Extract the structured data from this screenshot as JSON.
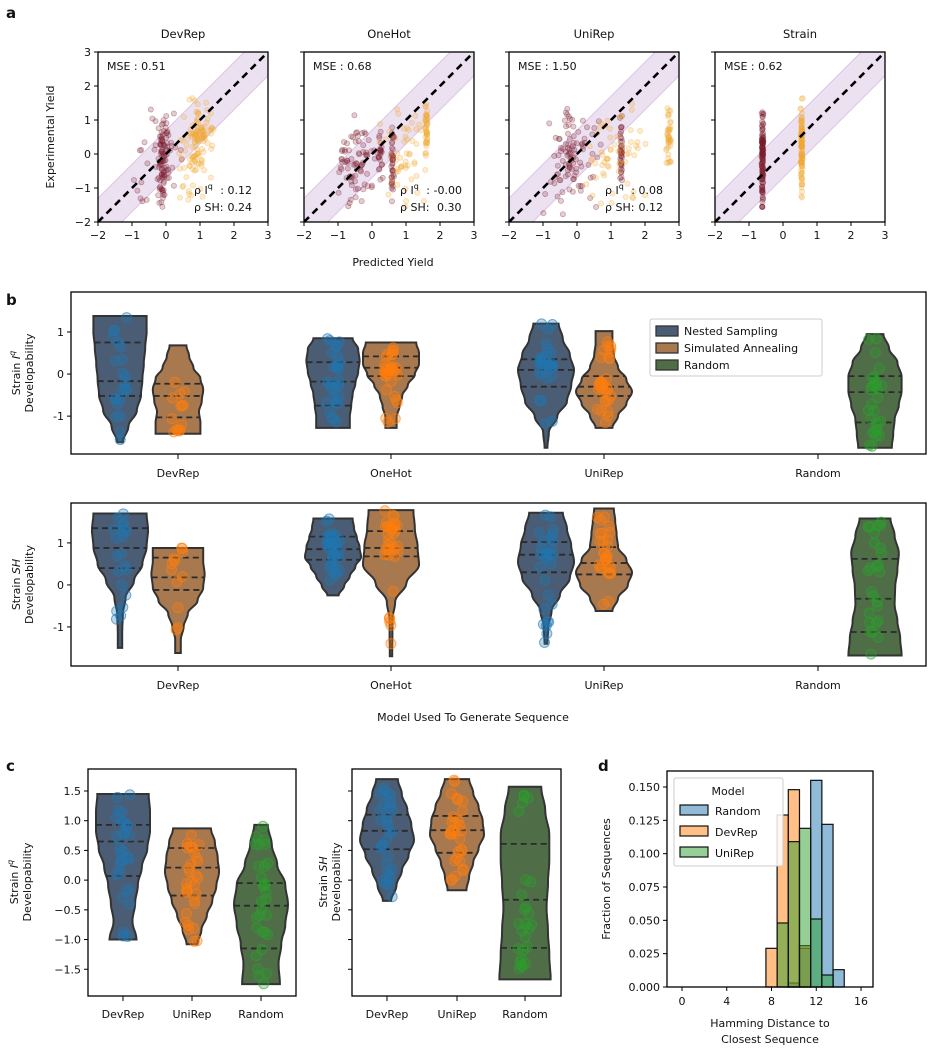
{
  "chart_data": [
    {
      "panel": "a",
      "panel_label": "a",
      "type": "scatter",
      "xlabel": "Predicted Yield",
      "ylabel": "Experimental Yield",
      "xlim": [
        -2,
        3
      ],
      "ylim": [
        -2,
        3
      ],
      "ticks": [
        -2,
        -1,
        0,
        1,
        2,
        3
      ],
      "tick_labels": [
        "−2",
        "−1",
        "0",
        "1",
        "2",
        "3"
      ],
      "identity_line": true,
      "band_halfwidth": 0.7,
      "colors": {
        "Iq": "#7b1c2c",
        "SH": "#f0a830",
        "band": "#c9a9d6"
      },
      "rho_prefix": "ρ I",
      "rho_sup": "q",
      "rho_sh_prefix": "ρ SH:",
      "subplots": [
        {
          "title": "DevRep",
          "mse": "MSE : 0.51",
          "rho_iq": " : 0.12",
          "rho_sh": "0.24",
          "point_clusters": {
            "Iq": [
              {
                "x_mean": -0.1,
                "x_sd": 0.12,
                "y": [
                  -1.7,
                  1.3
                ],
                "n": 80
              },
              {
                "x_mean": -0.3,
                "x_sd": 0.5,
                "y": [
                  -1.8,
                  1.4
                ],
                "n": 40
              }
            ],
            "SH": [
              {
                "x_mean": 0.95,
                "x_sd": 0.3,
                "y": [
                  -0.6,
                  1.8
                ],
                "n": 90
              },
              {
                "x_mean": 0.8,
                "x_sd": 0.45,
                "y": [
                  -1.7,
                  1.2
                ],
                "n": 35
              }
            ]
          }
        },
        {
          "title": "OneHot",
          "mse": "MSE : 0.68",
          "rho_iq": " : -0.00",
          "rho_sh": " 0.30",
          "point_clusters": {
            "Iq": [
              {
                "x_mean": -0.4,
                "x_sd": 0.45,
                "y": [
                  -1.7,
                  1.4
                ],
                "n": 80
              },
              {
                "x_mean": 0.6,
                "x_sd": 0.03,
                "y": [
                  -1.6,
                  0.9
                ],
                "n": 40
              },
              {
                "x_mean": 0.25,
                "x_sd": 0.05,
                "y": [
                  -0.8,
                  0.9
                ],
                "n": 20
              }
            ],
            "SH": [
              {
                "x_mean": 1.0,
                "x_sd": 0.5,
                "y": [
                  -1.6,
                  1.7
                ],
                "n": 50
              },
              {
                "x_mean": 1.6,
                "x_sd": 0.03,
                "y": [
                  -0.4,
                  1.7
                ],
                "n": 40
              }
            ]
          }
        },
        {
          "title": "UniRep",
          "mse": "MSE : 1.50",
          "rho_iq": " : 0.08",
          "rho_sh": "0.12",
          "point_clusters": {
            "Iq": [
              {
                "x_mean": -0.1,
                "x_sd": 0.5,
                "y": [
                  -1.8,
                  1.5
                ],
                "n": 100
              },
              {
                "x_mean": 1.3,
                "x_sd": 0.03,
                "y": [
                  -1.0,
                  1.2
                ],
                "n": 40
              }
            ],
            "SH": [
              {
                "x_mean": 1.2,
                "x_sd": 0.6,
                "y": [
                  -1.7,
                  1.7
                ],
                "n": 60
              },
              {
                "x_mean": 2.7,
                "x_sd": 0.05,
                "y": [
                  -0.5,
                  1.8
                ],
                "n": 40
              }
            ]
          }
        },
        {
          "title": "Strain",
          "mse": "MSE : 0.62",
          "rho_iq": null,
          "rho_sh": null,
          "point_clusters": {
            "Iq": [
              {
                "x_mean": -0.6,
                "x_sd": 0.02,
                "y": [
                  -1.8,
                  1.45
                ],
                "n": 120
              }
            ],
            "SH": [
              {
                "x_mean": 0.55,
                "x_sd": 0.02,
                "y": [
                  -1.7,
                  1.8
                ],
                "n": 100
              }
            ]
          }
        }
      ]
    },
    {
      "panel": "b",
      "panel_label": "b",
      "type": "violin",
      "xlabel": "Model Used To Generate Sequence",
      "categories": [
        "DevRep",
        "OneHot",
        "UniRep",
        "Random"
      ],
      "hues": {
        "Nested Sampling": {
          "fill": "#4a5d75",
          "point": "#1f77b4"
        },
        "Simulated Annealing": {
          "fill": "#a8784e",
          "point": "#ff7f0e"
        },
        "Random": {
          "fill": "#4f6e48",
          "point": "#2ca02c"
        }
      },
      "legend": {
        "entries": [
          "Nested Sampling",
          "Simulated Annealing",
          "Random"
        ],
        "placement": "upper-right-center"
      },
      "yticks": [
        -1,
        0,
        1
      ],
      "ytick_labels": [
        "-1",
        "0",
        "1"
      ],
      "subplots": [
        {
          "ylabel": {
            "prefix": "Strain ",
            "symbol": "I",
            "sup": "q",
            "line2": "Developability"
          },
          "ylim": [
            -1.9,
            1.95
          ],
          "violins": [
            {
              "category": "DevRep",
              "hue": "Nested Sampling",
              "min": -1.62,
              "max": 1.38,
              "q1": -0.52,
              "median": -0.17,
              "q3": 0.75,
              "n": 22,
              "shape": [
                0.1,
                0.3,
                0.6,
                0.75,
                0.8,
                0.85,
                0.9,
                0.95,
                0.95
              ]
            },
            {
              "category": "DevRep",
              "hue": "Simulated Annealing",
              "min": -1.42,
              "max": 0.68,
              "q1": -1.03,
              "median": -0.52,
              "q3": -0.23,
              "n": 14,
              "shape": [
                0.8,
                0.8,
                0.75,
                0.85,
                0.9,
                0.8,
                0.55,
                0.4,
                0.3
              ]
            },
            {
              "category": "OneHot",
              "hue": "Nested Sampling",
              "min": -1.28,
              "max": 0.85,
              "q1": -0.75,
              "median": -0.18,
              "q3": 0.28,
              "n": 28,
              "shape": [
                0.6,
                0.6,
                0.65,
                0.7,
                0.8,
                0.9,
                0.95,
                0.9,
                0.7
              ]
            },
            {
              "category": "OneHot",
              "hue": "Simulated Annealing",
              "min": -1.28,
              "max": 0.75,
              "q1": -0.05,
              "median": 0.15,
              "q3": 0.42,
              "n": 32,
              "shape": [
                0.2,
                0.2,
                0.3,
                0.4,
                0.6,
                0.85,
                1,
                1,
                0.9
              ]
            },
            {
              "category": "UniRep",
              "hue": "Nested Sampling",
              "min": -1.75,
              "max": 1.2,
              "q1": -0.3,
              "median": 0.1,
              "q3": 0.35,
              "n": 26,
              "shape": [
                0.05,
                0.1,
                0.4,
                0.75,
                0.9,
                1,
                0.85,
                0.6,
                0.45
              ]
            },
            {
              "category": "UniRep",
              "hue": "Simulated Annealing",
              "min": -1.28,
              "max": 1.02,
              "q1": -0.52,
              "median": -0.3,
              "q3": -0.05,
              "n": 30,
              "shape": [
                0.3,
                0.5,
                0.8,
                1,
                0.8,
                0.5,
                0.35,
                0.3,
                0.3
              ]
            },
            {
              "category": "Random",
              "hue": "Random",
              "min": -1.75,
              "max": 0.95,
              "q1": -1.15,
              "median": -0.43,
              "q3": -0.05,
              "n": 28,
              "shape": [
                0.6,
                0.65,
                0.7,
                0.85,
                0.95,
                0.95,
                0.8,
                0.5,
                0.3
              ]
            }
          ]
        },
        {
          "ylabel": {
            "prefix": "Strain ",
            "symbol": "SH",
            "sup": "",
            "line2": "Developability"
          },
          "ylim": [
            -1.93,
            1.95
          ],
          "violins": [
            {
              "category": "DevRep",
              "hue": "Nested Sampling",
              "min": -1.5,
              "max": 1.7,
              "q1": 0.4,
              "median": 0.88,
              "q3": 1.35,
              "n": 20,
              "shape": [
                0.08,
                0.08,
                0.1,
                0.2,
                0.5,
                0.8,
                0.95,
                1,
                0.95
              ]
            },
            {
              "category": "DevRep",
              "hue": "Simulated Annealing",
              "min": -1.62,
              "max": 0.88,
              "q1": -0.12,
              "median": 0.18,
              "q3": 0.65,
              "n": 12,
              "shape": [
                0.1,
                0.1,
                0.2,
                0.35,
                0.7,
                0.9,
                0.95,
                0.9,
                0.9
              ]
            },
            {
              "category": "OneHot",
              "hue": "Nested Sampling",
              "min": -0.25,
              "max": 1.58,
              "q1": 0.6,
              "median": 0.85,
              "q3": 1.15,
              "n": 30,
              "shape": [
                0.2,
                0.4,
                0.6,
                0.8,
                1,
                0.95,
                0.85,
                0.75,
                0.7
              ]
            },
            {
              "category": "OneHot",
              "hue": "Simulated Annealing",
              "min": -1.7,
              "max": 1.78,
              "q1": 0.68,
              "median": 0.88,
              "q3": 1.28,
              "n": 34,
              "shape": [
                0.03,
                0.05,
                0.05,
                0.15,
                0.55,
                1,
                0.95,
                0.85,
                0.8
              ]
            },
            {
              "category": "UniRep",
              "hue": "Nested Sampling",
              "min": -1.4,
              "max": 1.72,
              "q1": 0.3,
              "median": 0.72,
              "q3": 1.02,
              "n": 28,
              "shape": [
                0.05,
                0.08,
                0.2,
                0.5,
                0.85,
                1,
                0.9,
                0.75,
                0.6
              ]
            },
            {
              "category": "UniRep",
              "hue": "Simulated Annealing",
              "min": -0.62,
              "max": 1.82,
              "q1": 0.25,
              "median": 0.52,
              "q3": 0.9,
              "n": 28,
              "shape": [
                0.3,
                0.5,
                0.85,
                1,
                0.8,
                0.5,
                0.45,
                0.4,
                0.35
              ]
            },
            {
              "category": "Random",
              "hue": "Random",
              "min": -1.68,
              "max": 1.58,
              "q1": -1.12,
              "median": -0.33,
              "q3": 0.62,
              "n": 26,
              "shape": [
                0.95,
                0.9,
                0.8,
                0.7,
                0.72,
                0.8,
                0.85,
                0.7,
                0.55
              ]
            }
          ]
        }
      ]
    },
    {
      "panel": "c",
      "panel_label": "c",
      "type": "violin",
      "categories": [
        "DevRep",
        "UniRep",
        "Random"
      ],
      "ylim": [
        -1.95,
        1.87
      ],
      "yticks": [
        1.5,
        1.0,
        0.5,
        0.0,
        -0.5,
        -1.0,
        -1.5
      ],
      "ytick_labels": [
        "1.5",
        "1.0",
        "0.5",
        "0.0",
        "−0.5",
        "−1.0",
        "−1.5"
      ],
      "subplots": [
        {
          "ylabel": {
            "prefix": "Strain ",
            "symbol": "I",
            "sup": "q",
            "line2": "Developability"
          },
          "violins": [
            {
              "category": "DevRep",
              "hue": "Nested Sampling",
              "min": -1.0,
              "max": 1.45,
              "q1": 0.07,
              "median": 0.65,
              "q3": 0.93,
              "n": 30,
              "shape": [
                0.5,
                0.35,
                0.45,
                0.55,
                0.7,
                0.9,
                1,
                1,
                0.95
              ]
            },
            {
              "category": "UniRep",
              "hue": "Simulated Annealing",
              "min": -1.08,
              "max": 0.87,
              "q1": -0.26,
              "median": 0.21,
              "q3": 0.54,
              "n": 30,
              "shape": [
                0.2,
                0.35,
                0.55,
                0.75,
                0.9,
                1,
                0.95,
                0.85,
                0.7
              ]
            },
            {
              "category": "Random",
              "hue": "Random",
              "min": -1.75,
              "max": 0.93,
              "q1": -1.15,
              "median": -0.43,
              "q3": -0.05,
              "n": 30,
              "shape": [
                0.7,
                0.65,
                0.75,
                0.9,
                1,
                0.9,
                0.6,
                0.4,
                0.25
              ]
            }
          ]
        },
        {
          "ylabel": {
            "prefix": "Strain ",
            "symbol": "SH",
            "sup": "",
            "line2": "Developability"
          },
          "violins": [
            {
              "category": "DevRep",
              "hue": "Nested Sampling",
              "min": -0.35,
              "max": 1.7,
              "q1": 0.52,
              "median": 0.83,
              "q3": 1.1,
              "n": 30,
              "shape": [
                0.15,
                0.35,
                0.55,
                0.8,
                1,
                0.9,
                0.75,
                0.55,
                0.4
              ]
            },
            {
              "category": "UniRep",
              "hue": "Simulated Annealing",
              "min": -0.17,
              "max": 1.7,
              "q1": 0.46,
              "median": 0.84,
              "q3": 1.08,
              "n": 30,
              "shape": [
                0.35,
                0.45,
                0.6,
                0.8,
                1,
                0.95,
                0.8,
                0.6,
                0.45
              ]
            },
            {
              "category": "Random",
              "hue": "Random",
              "min": -1.67,
              "max": 1.57,
              "q1": -1.14,
              "median": -0.33,
              "q3": 0.61,
              "n": 26,
              "shape": [
                0.95,
                0.9,
                0.85,
                0.8,
                0.85,
                0.9,
                0.9,
                0.75,
                0.6
              ]
            }
          ]
        }
      ]
    },
    {
      "panel": "d",
      "panel_label": "d",
      "type": "bar",
      "subtype": "histogram",
      "xlabel_lines": [
        "Hamming Distance to",
        "Closest Sequence"
      ],
      "ylabel": "Fraction of Sequences",
      "xlim": [
        -1.34,
        17.07
      ],
      "ylim": [
        0,
        0.162
      ],
      "xticks": [
        0,
        4,
        8,
        12,
        16
      ],
      "xtick_labels": [
        "0",
        "4",
        "8",
        "12",
        "16"
      ],
      "yticks": [
        0,
        0.025,
        0.05,
        0.075,
        0.1,
        0.125,
        0.15
      ],
      "ytick_labels": [
        "0.000",
        "0.025",
        "0.050",
        "0.075",
        "0.100",
        "0.125",
        "0.150"
      ],
      "bin_centers": [
        8,
        9,
        10,
        11,
        12,
        13,
        14
      ],
      "bin_width": 1,
      "legend": {
        "title": "Model",
        "placement": "upper-left"
      },
      "series": [
        {
          "name": "Random",
          "color": "#1f77b4",
          "values": [
            0,
            0,
            0.003,
            0.029,
            0.155,
            0.122,
            0.013
          ]
        },
        {
          "name": "DevRep",
          "color": "#ff7f0e",
          "values": [
            0.029,
            0.129,
            0.148,
            0.031,
            0,
            0,
            0
          ]
        },
        {
          "name": "UniRep",
          "color": "#2ca02c",
          "values": [
            0,
            0.048,
            0.109,
            0.119,
            0.051,
            0.009,
            0
          ]
        }
      ]
    }
  ]
}
